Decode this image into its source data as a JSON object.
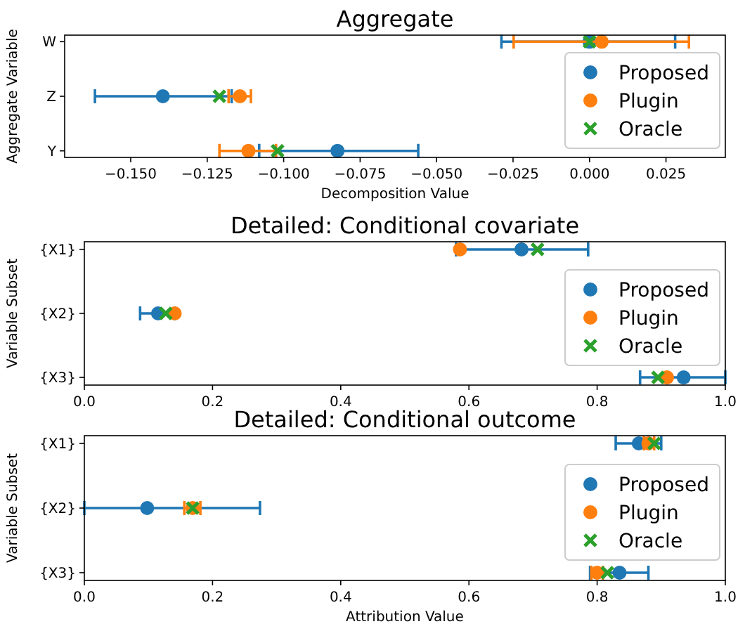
{
  "chart_data": [
    {
      "type": "scatter",
      "orientation": "horizontal",
      "title": "Aggregate",
      "xlabel": "Decomposition Value",
      "ylabel": "Aggregate Variable",
      "categories": [
        "W",
        "Z",
        "Y"
      ],
      "xlim": [
        -0.1716,
        0.0444
      ],
      "xticks": [
        {
          "value": -0.15,
          "label": "−0.150"
        },
        {
          "value": -0.125,
          "label": "−0.125"
        },
        {
          "value": -0.1,
          "label": "−0.100"
        },
        {
          "value": -0.075,
          "label": "−0.075"
        },
        {
          "value": -0.05,
          "label": "−0.050"
        },
        {
          "value": -0.025,
          "label": "−0.025"
        },
        {
          "value": 0,
          "label": "0.000"
        },
        {
          "value": 0.025,
          "label": "0.025"
        }
      ],
      "legend": "right",
      "series": [
        {
          "name": "Proposed",
          "color": "#1f77b4",
          "marker": "circle",
          "values": [
            0.0,
            -0.1395,
            -0.0824
          ],
          "errors": [
            [
              -0.0288,
              0.028
            ],
            [
              -0.1617,
              -0.117
            ],
            [
              -0.108,
              -0.056
            ]
          ]
        },
        {
          "name": "Plugin",
          "color": "#ff7f0e",
          "marker": "circle",
          "values": [
            0.004,
            -0.1143,
            -0.1115
          ],
          "errors": [
            [
              -0.0248,
              0.0325
            ],
            [
              -0.118,
              -0.1107
            ],
            [
              -0.121,
              -0.1025
            ]
          ]
        },
        {
          "name": "Oracle",
          "color": "#2ca02c",
          "marker": "cross",
          "values": [
            0.0,
            -0.121,
            -0.102
          ]
        }
      ]
    },
    {
      "type": "scatter",
      "orientation": "horizontal",
      "title": "Detailed: Conditional covariate",
      "ylabel": "Variable Subset",
      "categories": [
        "{X1}",
        "{X2}",
        "{X3}"
      ],
      "xlim": [
        0,
        1
      ],
      "xticks": [
        {
          "value": 0,
          "label": "0.0"
        },
        {
          "value": 0.2,
          "label": "0.2"
        },
        {
          "value": 0.4,
          "label": "0.4"
        },
        {
          "value": 0.6,
          "label": "0.6"
        },
        {
          "value": 0.8,
          "label": "0.8"
        },
        {
          "value": 1,
          "label": "1.0"
        }
      ],
      "legend": "right",
      "series": [
        {
          "name": "Proposed",
          "color": "#1f77b4",
          "marker": "circle",
          "values": [
            0.682,
            0.115,
            0.935
          ],
          "errors": [
            [
              0.58,
              0.786
            ],
            [
              0.087,
              0.141
            ],
            [
              0.867,
              1.0
            ]
          ]
        },
        {
          "name": "Plugin",
          "color": "#ff7f0e",
          "marker": "circle",
          "values": [
            0.586,
            0.141,
            0.909
          ],
          "errors": [
            null,
            null,
            null
          ]
        },
        {
          "name": "Oracle",
          "color": "#2ca02c",
          "marker": "cross",
          "values": [
            0.707,
            0.127,
            0.895
          ]
        }
      ]
    },
    {
      "type": "scatter",
      "orientation": "horizontal",
      "title": "Detailed: Conditional outcome",
      "xlabel": "Attribution Value",
      "ylabel": "Variable Subset",
      "categories": [
        "{X1}",
        "{X2}",
        "{X3}"
      ],
      "xlim": [
        0,
        1
      ],
      "xticks": [
        {
          "value": 0,
          "label": "0.0"
        },
        {
          "value": 0.2,
          "label": "0.2"
        },
        {
          "value": 0.4,
          "label": "0.4"
        },
        {
          "value": 0.6,
          "label": "0.6"
        },
        {
          "value": 0.8,
          "label": "0.8"
        },
        {
          "value": 1,
          "label": "1.0"
        }
      ],
      "legend": "right",
      "series": [
        {
          "name": "Proposed",
          "color": "#1f77b4",
          "marker": "circle",
          "values": [
            0.865,
            0.098,
            0.835
          ],
          "errors": [
            [
              0.829,
              0.9
            ],
            [
              0.0,
              0.274
            ],
            [
              0.789,
              0.88
            ]
          ]
        },
        {
          "name": "Plugin",
          "color": "#ff7f0e",
          "marker": "circle",
          "values": [
            0.88,
            0.169,
            0.8
          ],
          "errors": [
            [
              0.873,
              0.889
            ],
            [
              0.156,
              0.181
            ],
            [
              0.791,
              0.809
            ]
          ]
        },
        {
          "name": "Oracle",
          "color": "#2ca02c",
          "marker": "cross",
          "values": [
            0.889,
            0.169,
            0.816
          ]
        }
      ]
    }
  ]
}
